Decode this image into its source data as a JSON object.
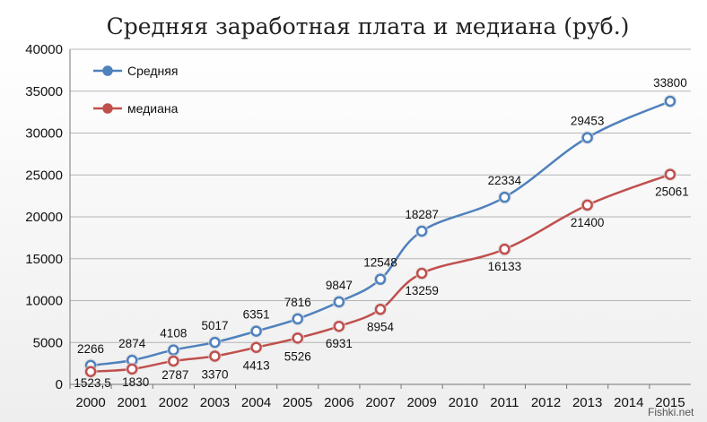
{
  "chart_data": {
    "type": "line",
    "title": "Средняя  заработная плата и медиана (руб.)",
    "categories": [
      "2000",
      "2001",
      "2002",
      "2003",
      "2004",
      "2005",
      "2006",
      "2007",
      "2009",
      "2010",
      "2011",
      "2012",
      "2013",
      "2014",
      "2015"
    ],
    "ylim": [
      0,
      40000
    ],
    "yticks": [
      "0",
      "5000",
      "10000",
      "15000",
      "20000",
      "25000",
      "30000",
      "35000",
      "40000"
    ],
    "grid": true,
    "legend_position": "top-left",
    "series": [
      {
        "name": "Средняя",
        "color": "#4f81bd",
        "points": [
          {
            "x": "2000",
            "value": 2266,
            "label": "2266"
          },
          {
            "x": "2001",
            "value": 2874,
            "label": "2874"
          },
          {
            "x": "2002",
            "value": 4108,
            "label": "4108"
          },
          {
            "x": "2003",
            "value": 5017,
            "label": "5017"
          },
          {
            "x": "2004",
            "value": 6351,
            "label": "6351"
          },
          {
            "x": "2005",
            "value": 7816,
            "label": "7816"
          },
          {
            "x": "2006",
            "value": 9847,
            "label": "9847"
          },
          {
            "x": "2007",
            "value": 12548,
            "label": "12548"
          },
          {
            "x": "2009",
            "value": 18287,
            "label": "18287"
          },
          {
            "x": "2011",
            "value": 22334,
            "label": "22334"
          },
          {
            "x": "2013",
            "value": 29453,
            "label": "29453"
          },
          {
            "x": "2015",
            "value": 33800,
            "label": "33800"
          }
        ]
      },
      {
        "name": "медиана",
        "color": "#c0504d",
        "points": [
          {
            "x": "2000",
            "value": 1523.5,
            "label": "1523,5"
          },
          {
            "x": "2001",
            "value": 1830,
            "label": "1830"
          },
          {
            "x": "2002",
            "value": 2787,
            "label": "2787"
          },
          {
            "x": "2003",
            "value": 3370,
            "label": "3370"
          },
          {
            "x": "2004",
            "value": 4413,
            "label": "4413"
          },
          {
            "x": "2005",
            "value": 5526,
            "label": "5526"
          },
          {
            "x": "2006",
            "value": 6931,
            "label": "6931"
          },
          {
            "x": "2007",
            "value": 8954,
            "label": "8954"
          },
          {
            "x": "2009",
            "value": 13259,
            "label": "13259"
          },
          {
            "x": "2011",
            "value": 16133,
            "label": "16133"
          },
          {
            "x": "2013",
            "value": 21400,
            "label": "21400"
          },
          {
            "x": "2015",
            "value": 25061,
            "label": "25061"
          }
        ]
      }
    ]
  },
  "watermark": "Fishki.net"
}
